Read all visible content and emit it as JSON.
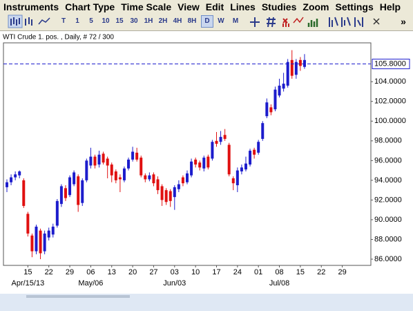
{
  "menu": [
    "Instruments",
    "Chart Type",
    "Time Scale",
    "View",
    "Edit",
    "Lines",
    "Studies",
    "Zoom",
    "Settings",
    "Help"
  ],
  "toolbar": {
    "buttons": [
      "T",
      "1",
      "5",
      "10",
      "15",
      "30",
      "1H",
      "2H",
      "4H",
      "8H",
      "D",
      "W",
      "M"
    ],
    "active": "D",
    "overflow": "»"
  },
  "chart_data": {
    "type": "candlestick",
    "title": "WTI Crude 1. pos. , Daily, # 72 / 300",
    "categories": [
      null,
      null,
      null,
      null,
      null,
      "15",
      null,
      null,
      null,
      null,
      "22",
      null,
      null,
      null,
      null,
      "29",
      null,
      null,
      null,
      null,
      "06",
      null,
      null,
      null,
      null,
      "13",
      null,
      null,
      null,
      null,
      "20",
      null,
      null,
      null,
      null,
      "27",
      null,
      null,
      null,
      null,
      "03",
      null,
      null,
      null,
      null,
      "10",
      null,
      null,
      null,
      null,
      "17",
      null,
      null,
      null,
      null,
      "24",
      null,
      null,
      null,
      null,
      "01",
      null,
      null,
      null,
      null,
      "08",
      null,
      null,
      null,
      null,
      "15",
      null,
      null,
      null,
      null,
      "22",
      null,
      null,
      null,
      null,
      "29",
      null,
      null,
      null,
      null,
      null,
      null
    ],
    "period_labels": [
      null,
      null,
      null,
      null,
      null,
      "Apr/15/13",
      null,
      null,
      null,
      null,
      null,
      null,
      null,
      null,
      null,
      null,
      null,
      null,
      null,
      null,
      "May/06",
      null,
      null,
      null,
      null,
      null,
      null,
      null,
      null,
      null,
      null,
      null,
      null,
      null,
      null,
      null,
      null,
      null,
      null,
      null,
      "Jun/03",
      null,
      null,
      null,
      null,
      null,
      null,
      null,
      null,
      null,
      null,
      null,
      null,
      null,
      null,
      null,
      null,
      null,
      null,
      null,
      null,
      null,
      null,
      null,
      null,
      "Jul/08",
      null,
      null,
      null,
      null,
      null,
      null,
      null,
      null,
      null,
      null,
      null,
      null,
      null,
      null,
      null,
      null,
      null,
      null,
      null,
      null,
      null
    ],
    "open": [
      93.3,
      93.8,
      94.3,
      94.5,
      94.0,
      90.6,
      88.4,
      86.8,
      88.9,
      86.8,
      88.2,
      88.5,
      89.4,
      91.6,
      93.2,
      92.5,
      93.6,
      94.4,
      91.7,
      94.0,
      95.5,
      96.4,
      95.6,
      96.7,
      96.2,
      95.6,
      94.9,
      94.3,
      94.0,
      95.2,
      96.1,
      96.8,
      96.3,
      94.5,
      94.1,
      94.6,
      94.1,
      93.4,
      93.0,
      92.9,
      92.3,
      93.1,
      94.3,
      93.8,
      94.5,
      96.1,
      95.8,
      95.2,
      96.4,
      96.2,
      98.0,
      97.9,
      98.6,
      97.6,
      94.2,
      93.5,
      94.9,
      95.1,
      95.6,
      97.1,
      96.8,
      98.2,
      100.5,
      101.4,
      101.2,
      102.6,
      103.3,
      103.6,
      106.2,
      104.7,
      106.2,
      105.5,
      null,
      null,
      null,
      null,
      null,
      null,
      null,
      null,
      null,
      null,
      null,
      null,
      null,
      null,
      null
    ],
    "high": [
      94.1,
      94.6,
      94.9,
      95.0,
      94.2,
      90.8,
      88.6,
      89.5,
      89.1,
      88.9,
      89.2,
      89.6,
      92.1,
      93.6,
      93.5,
      94.5,
      95.0,
      94.6,
      94.2,
      96.2,
      97.3,
      96.6,
      97.0,
      96.9,
      96.4,
      95.8,
      95.1,
      94.6,
      95.4,
      96.3,
      97.4,
      97.3,
      96.5,
      94.7,
      94.8,
      94.8,
      94.4,
      93.6,
      93.2,
      93.1,
      93.5,
      94.0,
      94.5,
      95.0,
      96.2,
      96.3,
      96.0,
      96.5,
      96.6,
      98.1,
      98.9,
      99.0,
      99.2,
      97.8,
      94.4,
      95.3,
      95.6,
      96.4,
      97.2,
      97.3,
      98.1,
      100.0,
      102.3,
      101.7,
      103.5,
      104.3,
      104.9,
      106.3,
      107.2,
      106.3,
      106.5,
      106.8,
      null,
      null,
      null,
      null,
      null,
      null,
      null,
      null,
      null,
      null,
      null,
      null,
      null,
      null,
      null
    ],
    "low": [
      92.8,
      93.5,
      94.0,
      94.2,
      91.2,
      88.3,
      86.2,
      86.5,
      86.0,
      86.5,
      87.9,
      88.2,
      89.2,
      91.3,
      91.9,
      92.3,
      93.4,
      90.8,
      91.4,
      93.8,
      95.2,
      95.2,
      95.3,
      95.6,
      94.2,
      93.8,
      93.7,
      92.8,
      93.8,
      95.0,
      95.9,
      95.9,
      94.3,
      93.8,
      93.9,
      93.4,
      92.6,
      91.4,
      91.5,
      91.3,
      91.0,
      92.8,
      93.4,
      93.6,
      94.3,
      95.3,
      95.0,
      94.9,
      95.1,
      96.0,
      97.4,
      97.6,
      98.0,
      94.4,
      93.0,
      92.8,
      94.6,
      94.9,
      95.4,
      96.2,
      96.6,
      98.0,
      100.3,
      100.6,
      101.0,
      102.4,
      103.0,
      103.4,
      104.3,
      104.3,
      105.1,
      105.3,
      null,
      null,
      null,
      null,
      null,
      null,
      null,
      null,
      null,
      null,
      null,
      null,
      null,
      null,
      null
    ],
    "close": [
      93.8,
      94.3,
      94.6,
      94.9,
      91.4,
      88.6,
      86.8,
      89.3,
      86.6,
      88.6,
      88.9,
      89.3,
      91.9,
      93.4,
      92.2,
      94.3,
      94.8,
      91.5,
      94.0,
      96.0,
      96.4,
      95.5,
      96.6,
      95.8,
      95.5,
      94.5,
      94.0,
      94.1,
      95.2,
      96.1,
      96.9,
      96.1,
      94.5,
      94.1,
      94.5,
      93.7,
      93.0,
      92.0,
      91.8,
      91.9,
      93.3,
      93.6,
      93.7,
      94.7,
      95.9,
      95.6,
      95.3,
      96.3,
      95.3,
      97.9,
      97.7,
      98.4,
      98.2,
      94.6,
      93.7,
      95.0,
      95.3,
      95.7,
      97.0,
      96.6,
      97.9,
      99.8,
      101.9,
      100.9,
      103.2,
      103.6,
      103.8,
      106.0,
      104.6,
      106.0,
      105.6,
      106.2,
      null,
      null,
      null,
      null,
      null,
      null,
      null,
      null,
      null,
      null,
      null,
      null,
      null,
      null,
      null
    ],
    "up_color": "#1c1ccc",
    "down_color": "#e01010",
    "ylim": [
      85.37,
      107.94
    ],
    "yticks": [
      {
        "value": 86,
        "label": "86.0000"
      },
      {
        "value": 88,
        "label": "88.0000"
      },
      {
        "value": 90,
        "label": "90.0000"
      },
      {
        "value": 92,
        "label": "92.0000"
      },
      {
        "value": 94,
        "label": "94.0000"
      },
      {
        "value": 96,
        "label": "96.0000"
      },
      {
        "value": 98,
        "label": "98.0000"
      },
      {
        "value": 100,
        "label": "100.0000"
      },
      {
        "value": 102,
        "label": "102.0000"
      },
      {
        "value": 104,
        "label": "104.0000"
      }
    ],
    "reference_line": {
      "value": 105.8,
      "label": "105.8000",
      "color": "#1c1ccc"
    }
  }
}
